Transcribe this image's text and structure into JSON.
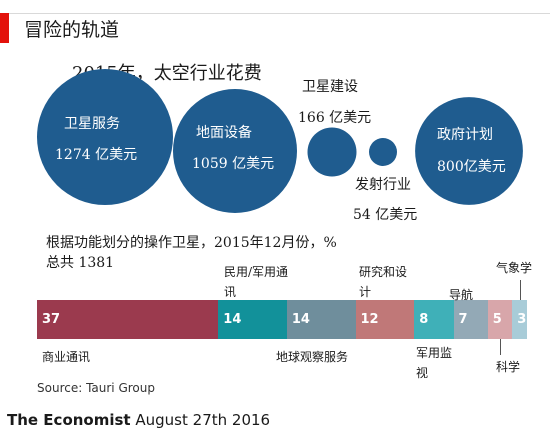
{
  "header": {
    "title": "冒险的轨道",
    "subtitle": "2015年，太空行业花费"
  },
  "chart_data": [
    {
      "type": "bubble",
      "title": "2015年，太空行业花费",
      "unit": "亿美元",
      "categories": [
        "卫星服务",
        "地面设备",
        "卫星建设",
        "发射行业",
        "政府计划"
      ],
      "values": [
        1274,
        1059,
        166,
        54,
        800
      ],
      "value_labels": [
        "1274 亿美元",
        "1059 亿美元",
        "166 亿美元",
        "54 亿美元",
        "800亿美元"
      ],
      "color": "#1f5c8f"
    },
    {
      "type": "bar",
      "orientation": "stacked-horizontal",
      "title": "根据功能划分的操作卫星，2015年12月份，%",
      "total_label": "总共 1381",
      "categories": [
        "商业通讯",
        "民用/军用通讯",
        "地球观察服务",
        "研究和设计",
        "军用监视",
        "导航",
        "科学",
        "气象学"
      ],
      "values": [
        37,
        14,
        14,
        12,
        8,
        7,
        5,
        3
      ],
      "colors": [
        "#9b3a4e",
        "#12919a",
        "#6f8e9c",
        "#c07878",
        "#3fb0b8",
        "#93a9b6",
        "#d8a6aa",
        "#a8ccd8"
      ]
    }
  ],
  "footer": {
    "source": "Source: Tauri Group",
    "brand": "The Economist",
    "date": "August 27th 2016"
  }
}
